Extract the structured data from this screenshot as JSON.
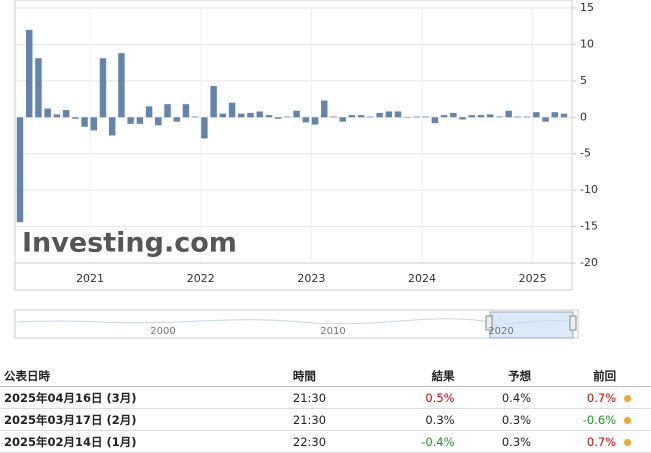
{
  "chart_data": {
    "type": "bar",
    "watermark": "Investing.com",
    "categories": [
      null,
      null,
      null,
      null,
      null,
      null,
      null,
      null,
      "2021",
      null,
      null,
      null,
      null,
      null,
      null,
      null,
      null,
      null,
      null,
      null,
      "2022",
      null,
      null,
      null,
      null,
      null,
      null,
      null,
      null,
      null,
      null,
      null,
      "2023",
      null,
      null,
      null,
      null,
      null,
      null,
      null,
      null,
      null,
      null,
      null,
      "2024",
      null,
      null,
      null,
      null,
      null,
      null,
      null,
      null,
      null,
      null,
      null,
      "2025",
      null,
      null,
      null
    ],
    "values": [
      -14.4,
      12,
      8.1,
      1.2,
      0.4,
      1.0,
      -0.2,
      -1.3,
      -1.8,
      8.1,
      -2.5,
      8.8,
      -0.9,
      -0.9,
      1.5,
      -1.1,
      1.8,
      -0.6,
      1.8,
      0.1,
      -2.9,
      4.3,
      0.5,
      2.0,
      0.5,
      0.6,
      0.8,
      0.3,
      -0.2,
      0.1,
      0.9,
      -0.7,
      -1.0,
      2.3,
      0.1,
      -0.6,
      0.3,
      0.3,
      0.1,
      0.6,
      0.8,
      0.8,
      0,
      0.1,
      0.1,
      -0.8,
      0.3,
      0.6,
      -0.3,
      0.3,
      0.3,
      0.4,
      0.1,
      0.9,
      0.1,
      0.1,
      0.7,
      -0.6,
      0.7,
      0.5
    ],
    "color": "#6384ad",
    "ylim": [
      -20,
      15
    ],
    "yticks": [
      15,
      10,
      5,
      0,
      -5,
      -10,
      -15,
      -20
    ],
    "grid": true,
    "navigator_labels": [
      "2000",
      "2010",
      "2020"
    ]
  },
  "table": {
    "header": [
      "公表日時",
      "時間",
      "結果",
      "予想",
      "前回"
    ],
    "rows": [
      {
        "date": "2025年04月16日 (3月)",
        "time": "21:30",
        "actual": "0.5%",
        "actual_color": "#e00000",
        "forecast": "0.4%",
        "previous": "0.7%",
        "previous_color": "#e00000"
      },
      {
        "date": "2025年03月17日 (2月)",
        "time": "21:30",
        "actual": "0.3%",
        "actual_color": "#222222",
        "forecast": "0.3%",
        "previous": "-0.6%",
        "previous_color": "#1a9a1a"
      },
      {
        "date": "2025年02月14日 (1月)",
        "time": "22:30",
        "actual": "-0.4%",
        "actual_color": "#1a9a1a",
        "forecast": "0.3%",
        "previous": "0.7%",
        "previous_color": "#e00000"
      }
    ]
  }
}
